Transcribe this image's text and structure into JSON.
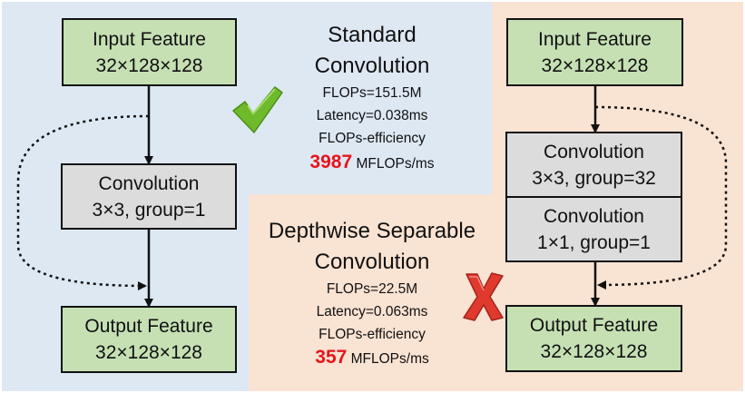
{
  "standard": {
    "title_line1": "Standard",
    "title_line2": "Convolution",
    "flops": "FLOPs=151.5M",
    "latency": "Latency=0.038ms",
    "eff_label": "FLOPs-efficiency",
    "eff_value": "3987",
    "eff_unit": " MFLOPs/ms",
    "input": {
      "label": "Input Feature",
      "dims": "32×128×128"
    },
    "conv": {
      "label": "Convolution",
      "params": "3×3, group=1"
    },
    "output": {
      "label": "Output Feature",
      "dims": "32×128×128"
    }
  },
  "depthwise": {
    "title_line1": "Depthwise Separable",
    "title_line2": "Convolution",
    "flops": "FLOPs=22.5M",
    "latency": "Latency=0.063ms",
    "eff_label": "FLOPs-efficiency",
    "eff_value": "357",
    "eff_unit": " MFLOPs/ms",
    "input": {
      "label": "Input Feature",
      "dims": "32×128×128"
    },
    "conv1": {
      "label": "Convolution",
      "params": "3×3, group=32"
    },
    "conv2": {
      "label": "Convolution",
      "params": "1×1, group=1"
    },
    "output": {
      "label": "Output Feature",
      "dims": "32×128×128"
    }
  },
  "colors": {
    "background_left": "#dde8f3",
    "background_right": "#f9e3d3",
    "feature_box": "#c6e0b4",
    "conv_box": "#dcdcdc",
    "highlight": "#e8141b",
    "check": "#6fba2c",
    "cross": "#e03a2e"
  },
  "icons": {
    "good": "check-mark-icon",
    "bad": "cross-mark-icon"
  }
}
